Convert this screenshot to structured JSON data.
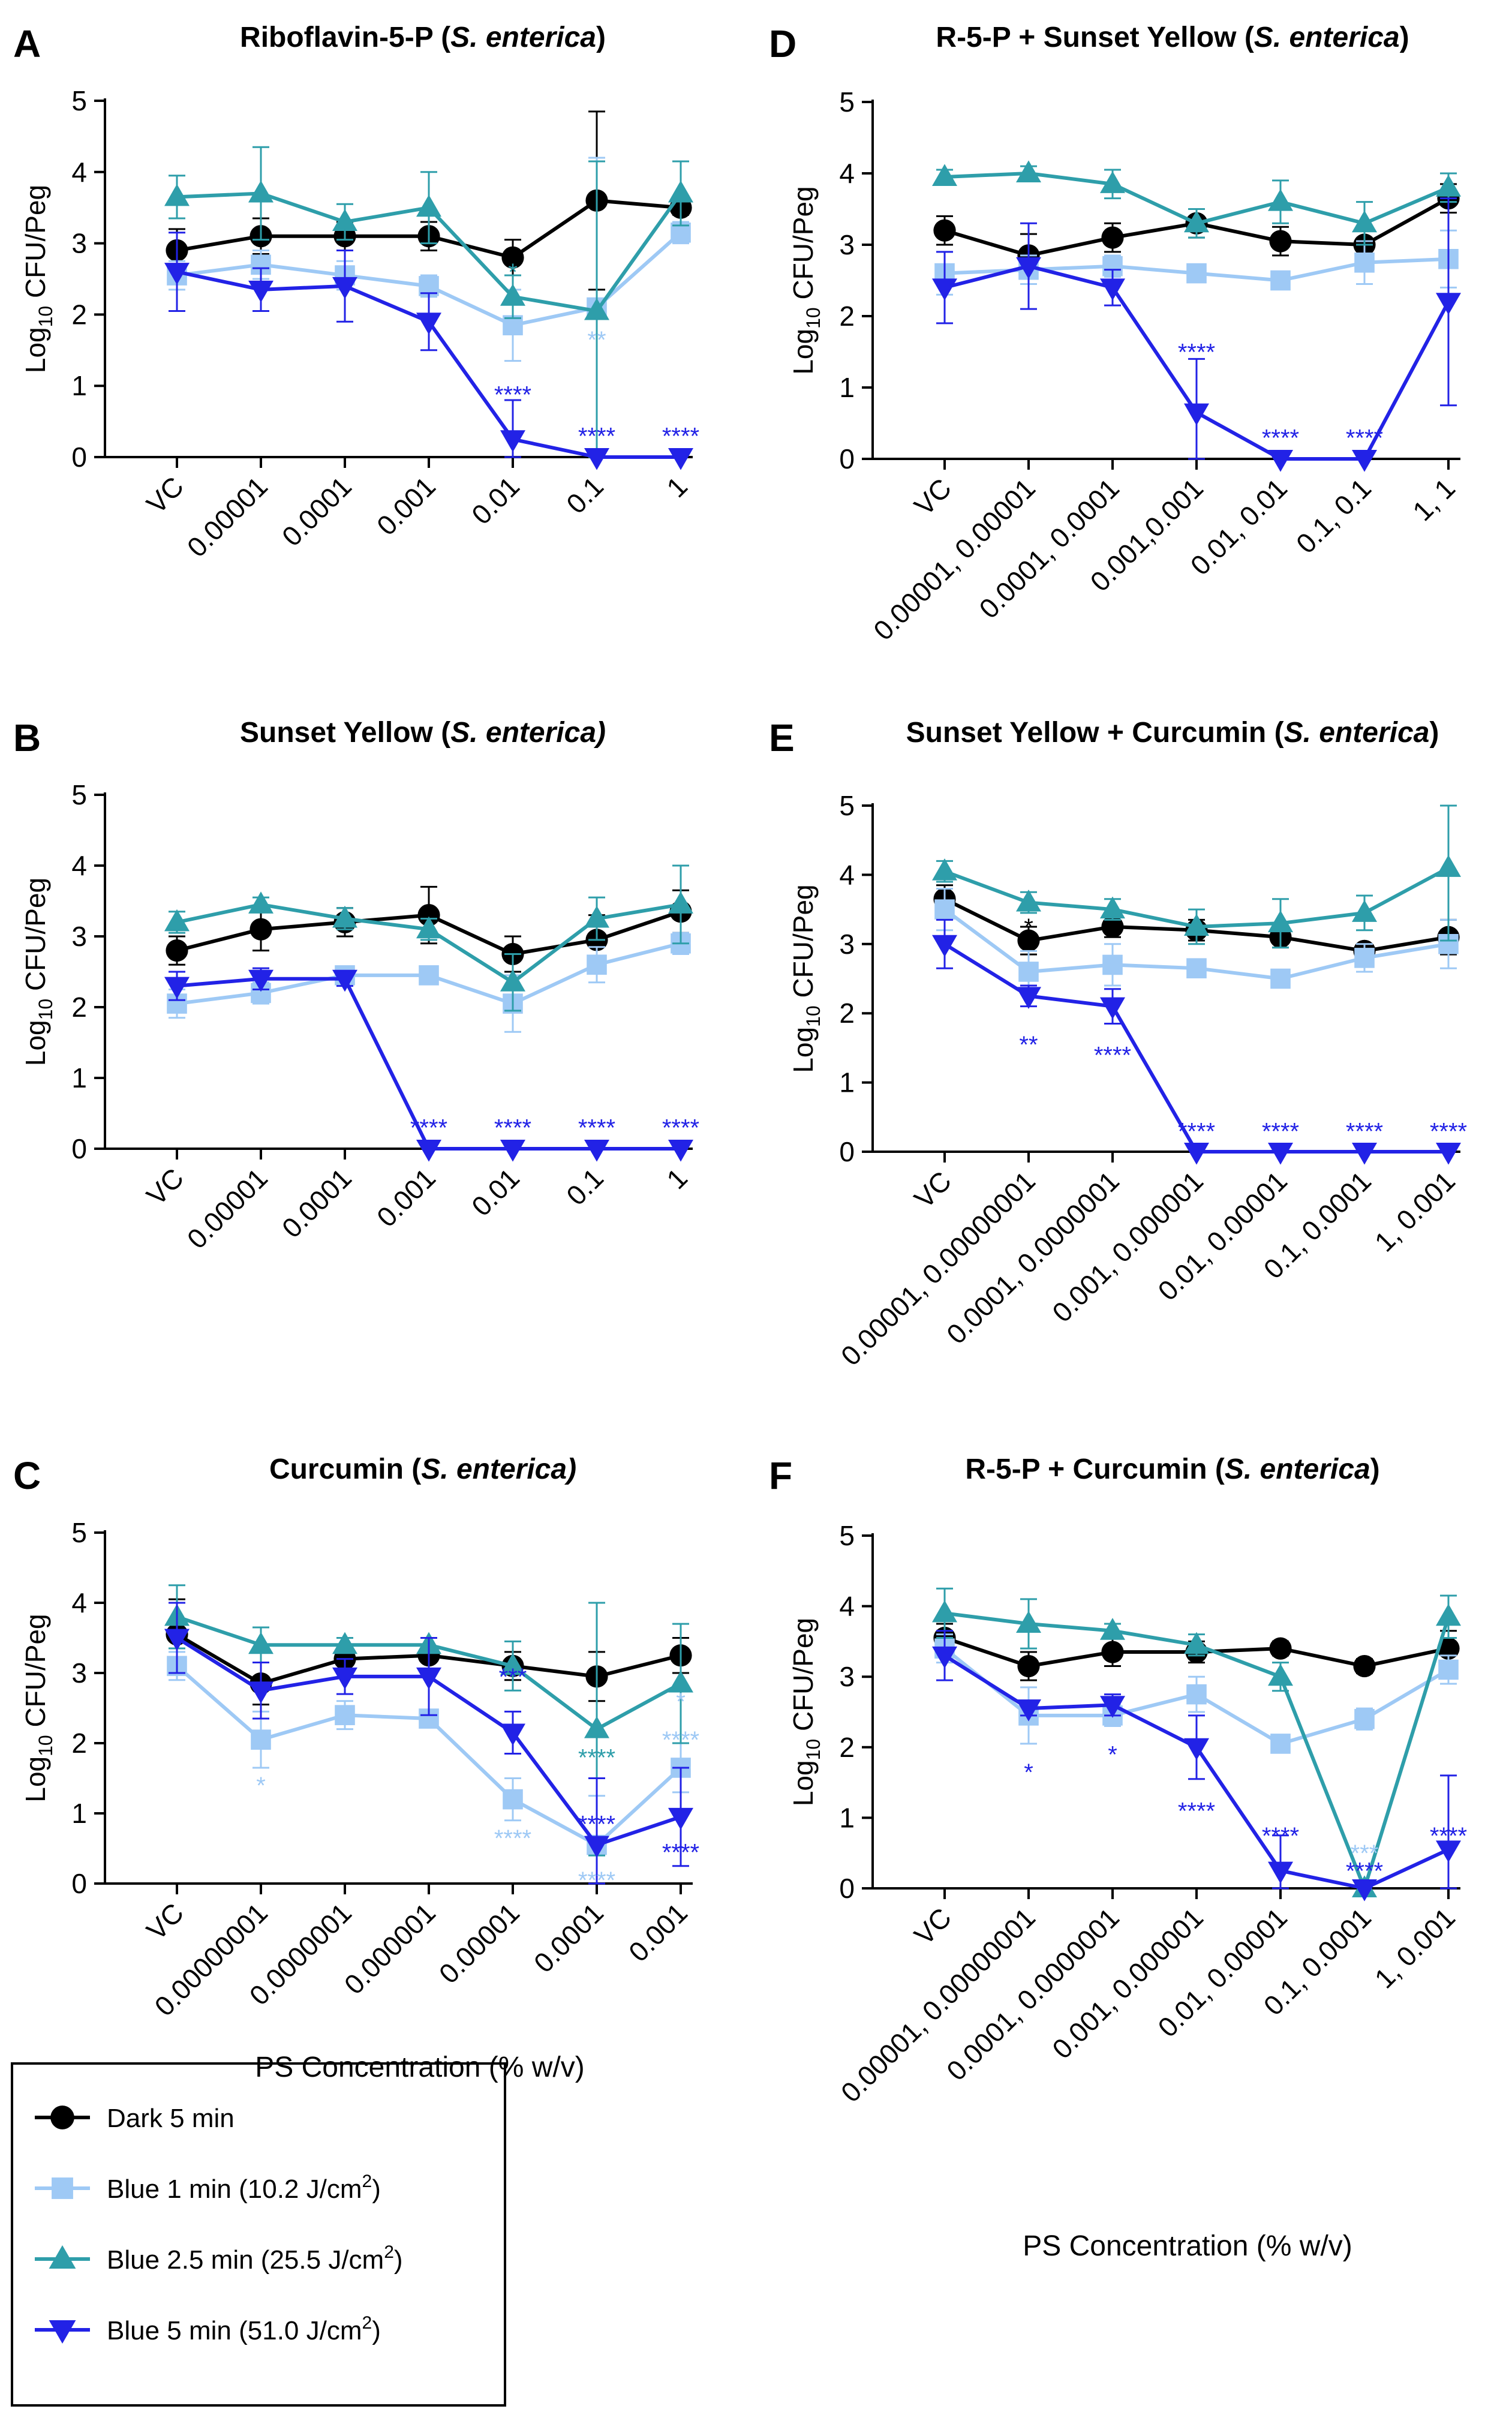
{
  "figure": {
    "y_axis_label_prefix": "Log",
    "y_axis_label_sub": "10",
    "y_axis_label_suffix": " CFU/Peg",
    "x_axis_label": "PS Concentration (% w/v)"
  },
  "colors": {
    "dark": "#000000",
    "blue1": "#9ec9f5",
    "blue25": "#2e9eaa",
    "blue5": "#2222e6"
  },
  "legend": [
    {
      "label": "Dark 5 min",
      "sup": "",
      "tail": "",
      "color": "#000000",
      "marker": "circle"
    },
    {
      "label": "Blue 1 min (10.2 J/cm",
      "sup": "2",
      "tail": ")",
      "color": "#9ec9f5",
      "marker": "square"
    },
    {
      "label": "Blue 2.5 min (25.5 J/cm",
      "sup": "2",
      "tail": ")",
      "color": "#2e9eaa",
      "marker": "triangle-up"
    },
    {
      "label": "Blue 5 min (51.0 J/cm",
      "sup": "2",
      "tail": ")",
      "color": "#2222e6",
      "marker": "triangle-down"
    }
  ],
  "chart_data": [
    {
      "panel": "A",
      "type": "line",
      "title_main": "Riboflavin-5-P (",
      "title_italic": "S. enterica",
      "title_end": ")",
      "ylim": [
        0,
        5
      ],
      "yticks": [
        "0",
        "1",
        "2",
        "3",
        "4",
        "5"
      ],
      "categories": [
        "VC",
        "0.00001",
        "0.0001",
        "0.001",
        "0.01",
        "0.1",
        "1"
      ],
      "series": [
        {
          "name": "Dark 5 min",
          "values": [
            2.9,
            3.1,
            3.1,
            3.1,
            2.8,
            3.6,
            3.5
          ],
          "errors": [
            0.3,
            0.25,
            0.2,
            0.2,
            0.25,
            1.25,
            0.1
          ]
        },
        {
          "name": "Blue 1 min (10.2 J/cm2)",
          "values": [
            2.55,
            2.7,
            2.55,
            2.4,
            1.85,
            2.1,
            3.15
          ],
          "errors": [
            0.2,
            0.2,
            0.2,
            0.15,
            0.5,
            2.1,
            0.15
          ]
        },
        {
          "name": "Blue 2.5 min (25.5 J/cm2)",
          "values": [
            3.65,
            3.7,
            3.3,
            3.5,
            2.25,
            2.05,
            3.7
          ],
          "errors": [
            0.3,
            0.65,
            0.25,
            0.5,
            0.3,
            2.1,
            0.45
          ]
        },
        {
          "name": "Blue 5 min (51.0 J/cm2)",
          "values": [
            2.6,
            2.35,
            2.4,
            1.9,
            0.25,
            0.0,
            0.0
          ],
          "errors": [
            0.55,
            0.3,
            0.5,
            0.4,
            0.55,
            0.0,
            0.0
          ]
        }
      ],
      "annotations": [
        {
          "x": 4,
          "y": 2.6,
          "text": "*",
          "series": 2
        },
        {
          "x": 5,
          "y": 1.65,
          "text": "**",
          "series": 1
        },
        {
          "x": 4,
          "y": 0.88,
          "text": "****",
          "series": 3
        },
        {
          "x": 5,
          "y": 0.3,
          "text": "****",
          "series": 3
        },
        {
          "x": 6,
          "y": 0.3,
          "text": "****",
          "series": 3
        }
      ]
    },
    {
      "panel": "B",
      "type": "line",
      "title_main": "Sunset Yellow (",
      "title_italic": "S. enterica)",
      "title_end": "",
      "ylim": [
        0,
        5
      ],
      "yticks": [
        "0",
        "1",
        "2",
        "3",
        "4",
        "5"
      ],
      "categories": [
        "VC",
        "0.00001",
        "0.0001",
        "0.001",
        "0.01",
        "0.1",
        "1"
      ],
      "series": [
        {
          "name": "Dark 5 min",
          "values": [
            2.8,
            3.1,
            3.2,
            3.3,
            2.75,
            2.95,
            3.35
          ],
          "errors": [
            0.2,
            0.3,
            0.2,
            0.4,
            0.25,
            0.35,
            0.3
          ]
        },
        {
          "name": "Blue 1 min (10.2 J/cm2)",
          "values": [
            2.05,
            2.2,
            2.45,
            2.45,
            2.05,
            2.6,
            2.9
          ],
          "errors": [
            0.2,
            0.15,
            0.1,
            0.1,
            0.4,
            0.25,
            0.15
          ]
        },
        {
          "name": "Blue 2.5 min (25.5 J/cm2)",
          "values": [
            3.2,
            3.45,
            3.25,
            3.1,
            2.35,
            3.25,
            3.45
          ],
          "errors": [
            0.15,
            0.1,
            0.15,
            0.15,
            0.4,
            0.3,
            0.55
          ]
        },
        {
          "name": "Blue 5 min (51.0 J/cm2)",
          "values": [
            2.3,
            2.4,
            2.4,
            0.0,
            0.0,
            0.0,
            0.0
          ],
          "errors": [
            0.2,
            0.15,
            0.1,
            0.0,
            0.0,
            0.0,
            0.0
          ]
        }
      ],
      "annotations": [
        {
          "x": 3,
          "y": 0.3,
          "text": "****",
          "series": 3
        },
        {
          "x": 4,
          "y": 0.3,
          "text": "****",
          "series": 3
        },
        {
          "x": 5,
          "y": 0.3,
          "text": "****",
          "series": 3
        },
        {
          "x": 6,
          "y": 0.3,
          "text": "****",
          "series": 3
        }
      ]
    },
    {
      "panel": "C",
      "type": "line",
      "title_main": "Curcumin (",
      "title_italic": "S. enterica)",
      "title_end": "",
      "ylim": [
        0,
        5
      ],
      "yticks": [
        "0",
        "1",
        "2",
        "3",
        "4",
        "5"
      ],
      "categories": [
        "VC",
        "0.00000001",
        "0.0000001",
        "0.000001",
        "0.00001",
        "0.0001",
        "0.001"
      ],
      "series": [
        {
          "name": "Dark 5 min",
          "values": [
            3.55,
            2.85,
            3.2,
            3.25,
            3.1,
            2.95,
            3.25
          ],
          "errors": [
            0.5,
            0.3,
            0.15,
            0.25,
            0.2,
            0.35,
            0.25
          ]
        },
        {
          "name": "Blue 1 min (10.2 J/cm2)",
          "values": [
            3.1,
            2.05,
            2.4,
            2.35,
            1.2,
            0.55,
            1.65
          ],
          "errors": [
            0.2,
            0.4,
            0.2,
            0.1,
            0.3,
            0.7,
            0.35
          ]
        },
        {
          "name": "Blue 2.5 min (25.5 J/cm2)",
          "values": [
            3.8,
            3.4,
            3.4,
            3.4,
            3.1,
            2.2,
            2.85
          ],
          "errors": [
            0.45,
            0.25,
            0.1,
            0.1,
            0.35,
            1.8,
            0.85
          ]
        },
        {
          "name": "Blue 5 min (51.0 J/cm2)",
          "values": [
            3.5,
            2.75,
            2.95,
            2.95,
            2.15,
            0.55,
            0.95
          ],
          "errors": [
            0.5,
            0.4,
            0.25,
            0.55,
            0.3,
            0.95,
            0.7
          ]
        }
      ],
      "annotations": [
        {
          "x": 1,
          "y": 1.4,
          "text": "*",
          "series": 1
        },
        {
          "x": 4,
          "y": 2.95,
          "text": "***",
          "series": 3
        },
        {
          "x": 4,
          "y": 0.65,
          "text": "****",
          "series": 1
        },
        {
          "x": 5,
          "y": 1.8,
          "text": "****",
          "series": 2
        },
        {
          "x": 5,
          "y": 0.85,
          "text": "****",
          "series": 3
        },
        {
          "x": 5,
          "y": 0.05,
          "text": "****",
          "series": 1
        },
        {
          "x": 6,
          "y": 2.6,
          "text": "*",
          "series": 1
        },
        {
          "x": 6,
          "y": 2.05,
          "text": "****",
          "series": 1
        },
        {
          "x": 6,
          "y": 0.45,
          "text": "****",
          "series": 3
        }
      ]
    },
    {
      "panel": "D",
      "type": "line",
      "title_main": "R-5-P + Sunset Yellow (",
      "title_italic": "S. enterica",
      "title_end": ")",
      "ylim": [
        0,
        5
      ],
      "yticks": [
        "0",
        "1",
        "2",
        "3",
        "4",
        "5"
      ],
      "categories": [
        "VC",
        "0.00001, 0.00001",
        "0.0001, 0.0001",
        "0.001,0.001",
        "0.01, 0.01",
        "0.1, 0.1",
        "1, 1"
      ],
      "series": [
        {
          "name": "Dark 5 min",
          "values": [
            3.2,
            2.85,
            3.1,
            3.3,
            3.05,
            3.0,
            3.65
          ],
          "errors": [
            0.2,
            0.3,
            0.2,
            0.2,
            0.2,
            0.2,
            0.2
          ]
        },
        {
          "name": "Blue 1 min (10.2 J/cm2)",
          "values": [
            2.6,
            2.65,
            2.7,
            2.6,
            2.5,
            2.75,
            2.8
          ],
          "errors": [
            0.3,
            0.2,
            0.15,
            0.1,
            0.1,
            0.3,
            0.4
          ]
        },
        {
          "name": "Blue 2.5 min (25.5 J/cm2)",
          "values": [
            3.95,
            4.0,
            3.85,
            3.3,
            3.6,
            3.3,
            3.8
          ],
          "errors": [
            0.1,
            0.1,
            0.2,
            0.2,
            0.3,
            0.3,
            0.2
          ]
        },
        {
          "name": "Blue 5 min (51.0 J/cm2)",
          "values": [
            2.4,
            2.7,
            2.4,
            0.65,
            0.0,
            0.0,
            2.2
          ],
          "errors": [
            0.5,
            0.6,
            0.25,
            0.75,
            0.0,
            0.0,
            1.45
          ]
        }
      ],
      "annotations": [
        {
          "x": 3,
          "y": 1.5,
          "text": "****",
          "series": 3
        },
        {
          "x": 4,
          "y": 0.3,
          "text": "****",
          "series": 3
        },
        {
          "x": 5,
          "y": 0.3,
          "text": "****",
          "series": 3
        }
      ]
    },
    {
      "panel": "E",
      "type": "line",
      "title_main": "Sunset Yellow + Curcumin (",
      "title_italic": "S. enterica",
      "title_end": ")",
      "ylim": [
        0,
        5
      ],
      "yticks": [
        "0",
        "1",
        "2",
        "3",
        "4",
        "5"
      ],
      "categories": [
        "VC",
        "0.00001, 0.00000001",
        "0.0001, 0.0000001",
        "0.001, 0.000001",
        "0.01, 0.00001",
        "0.1, 0.0001",
        "1, 0.001"
      ],
      "series": [
        {
          "name": "Dark 5 min",
          "values": [
            3.65,
            3.05,
            3.25,
            3.2,
            3.1,
            2.9,
            3.1
          ],
          "errors": [
            0.2,
            0.2,
            0.15,
            0.15,
            0.15,
            0.1,
            0.25
          ]
        },
        {
          "name": "Blue 1 min (10.2 J/cm2)",
          "values": [
            3.5,
            2.6,
            2.7,
            2.65,
            2.5,
            2.8,
            3.0
          ],
          "errors": [
            0.3,
            0.3,
            0.3,
            0.1,
            0.1,
            0.2,
            0.35
          ]
        },
        {
          "name": "Blue 2.5 min (25.5 J/cm2)",
          "values": [
            4.05,
            3.6,
            3.5,
            3.25,
            3.3,
            3.45,
            4.1
          ],
          "errors": [
            0.15,
            0.15,
            0.15,
            0.25,
            0.35,
            0.25,
            1.05
          ]
        },
        {
          "name": "Blue 5 min (51.0 J/cm2)",
          "values": [
            3.0,
            2.25,
            2.1,
            0.0,
            0.0,
            0.0,
            0.0
          ],
          "errors": [
            0.35,
            0.15,
            0.25,
            0.0,
            0.0,
            0.0,
            0.0
          ]
        }
      ],
      "annotations": [
        {
          "x": 1,
          "y": 3.25,
          "text": "*",
          "series": 0
        },
        {
          "x": 1,
          "y": 1.55,
          "text": "**",
          "series": 3
        },
        {
          "x": 2,
          "y": 1.4,
          "text": "****",
          "series": 3
        },
        {
          "x": 3,
          "y": 0.3,
          "text": "****",
          "series": 3
        },
        {
          "x": 4,
          "y": 0.3,
          "text": "****",
          "series": 3
        },
        {
          "x": 5,
          "y": 0.3,
          "text": "****",
          "series": 3
        },
        {
          "x": 6,
          "y": 0.3,
          "text": "****",
          "series": 3
        }
      ]
    },
    {
      "panel": "F",
      "type": "line",
      "title_main": "R-5-P + Curcumin (",
      "title_italic": "S. enterica",
      "title_end": ")",
      "ylim": [
        0,
        5
      ],
      "yticks": [
        "0",
        "1",
        "2",
        "3",
        "4",
        "5"
      ],
      "categories": [
        "VC",
        "0.00001, 0.00000001",
        "0.0001, 0.0000001",
        "0.001, 0.000001",
        "0.01, 0.00001",
        "0.1, 0.0001",
        "1, 0.001"
      ],
      "series": [
        {
          "name": "Dark 5 min",
          "values": [
            3.55,
            3.15,
            3.35,
            3.35,
            3.4,
            3.15,
            3.4
          ],
          "errors": [
            0.2,
            0.2,
            0.2,
            0.15,
            0.1,
            0.1,
            0.25
          ]
        },
        {
          "name": "Blue 1 min (10.2 J/cm2)",
          "values": [
            3.4,
            2.45,
            2.45,
            2.75,
            2.05,
            2.4,
            3.1
          ],
          "errors": [
            0.2,
            0.4,
            0.15,
            0.25,
            0.1,
            0.15,
            0.2
          ]
        },
        {
          "name": "Blue 2.5 min (25.5 J/cm2)",
          "values": [
            3.9,
            3.75,
            3.65,
            3.45,
            3.0,
            0.0,
            3.85
          ],
          "errors": [
            0.35,
            0.35,
            0.1,
            0.15,
            0.2,
            0.0,
            0.3
          ]
        },
        {
          "name": "Blue 5 min (51.0 J/cm2)",
          "values": [
            3.3,
            2.55,
            2.6,
            2.0,
            0.25,
            0.0,
            0.55
          ],
          "errors": [
            0.35,
            0.1,
            0.15,
            0.45,
            0.5,
            0.0,
            1.05
          ]
        }
      ],
      "annotations": [
        {
          "x": 1,
          "y": 1.65,
          "text": "*",
          "series": 3
        },
        {
          "x": 2,
          "y": 1.9,
          "text": "*",
          "series": 3
        },
        {
          "x": 3,
          "y": 1.1,
          "text": "****",
          "series": 3
        },
        {
          "x": 4,
          "y": 0.75,
          "text": "****",
          "series": 3
        },
        {
          "x": 5,
          "y": 0.5,
          "text": "***",
          "series": 1
        },
        {
          "x": 5,
          "y": 0.25,
          "text": "****",
          "series": 3
        },
        {
          "x": 6,
          "y": 0.75,
          "text": "****",
          "series": 3
        }
      ]
    }
  ]
}
